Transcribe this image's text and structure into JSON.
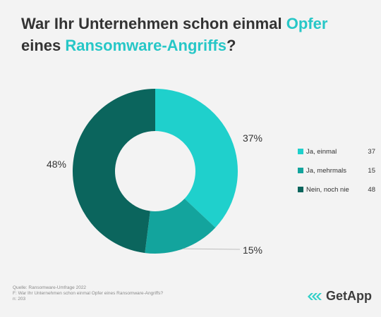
{
  "title": {
    "part1": "War Ihr Unternehmen schon einmal ",
    "highlight1": "Opfer",
    "part2": "eines ",
    "highlight2": "Ransomware-Angriffs",
    "part3": "?"
  },
  "chart_data": {
    "type": "pie",
    "style": "donut",
    "categories": [
      "Ja, einmal",
      "Ja, mehrmals",
      "Nein, noch nie"
    ],
    "values": [
      37,
      15,
      48
    ],
    "percent_labels": [
      "37%",
      "15%",
      "48%"
    ],
    "colors": [
      "#1fd0cc",
      "#13a49d",
      "#0b655d"
    ],
    "legend_position": "right",
    "unit": "%"
  },
  "legend": [
    {
      "label": "Ja, einmal",
      "value": "37",
      "color": "#1fd0cc"
    },
    {
      "label": "Ja, mehrmals",
      "value": "15",
      "color": "#13a49d"
    },
    {
      "label": "Nein, noch nie",
      "value": "48",
      "color": "#0b655d"
    }
  ],
  "footer": {
    "source": "Quelle: Ransomware-Umfrage 2022",
    "question": "F: War Ihr Unternehmen schon einmal Opfer eines Ransomware-Angriffs?",
    "n": "n: 203"
  },
  "brand": {
    "name": "GetApp",
    "icon": "getapp-logo-icon",
    "color": "#2fd0c8"
  }
}
